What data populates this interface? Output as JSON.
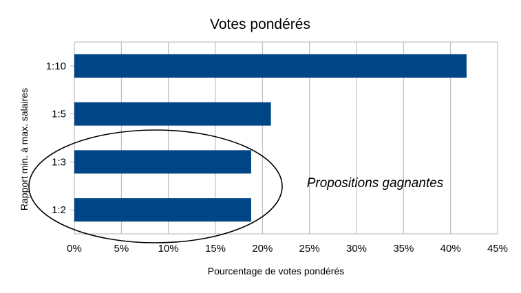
{
  "chart_data": {
    "type": "bar",
    "orientation": "horizontal",
    "title": "Votes pondérés",
    "xlabel": "Pourcentage de votes pondérés",
    "ylabel": "Rapport min. à max. salaires",
    "categories": [
      "1:10",
      "1:5",
      "1:3",
      "1:2"
    ],
    "values": [
      41.7,
      20.9,
      18.8,
      18.8
    ],
    "xlim": [
      0,
      45
    ],
    "xticks": [
      "0%",
      "5%",
      "10%",
      "15%",
      "20%",
      "25%",
      "30%",
      "35%",
      "40%",
      "45%"
    ],
    "grid": "vertical",
    "legend": "none",
    "bar_color": "#004586",
    "annotation": "Propositions gagnantes"
  }
}
